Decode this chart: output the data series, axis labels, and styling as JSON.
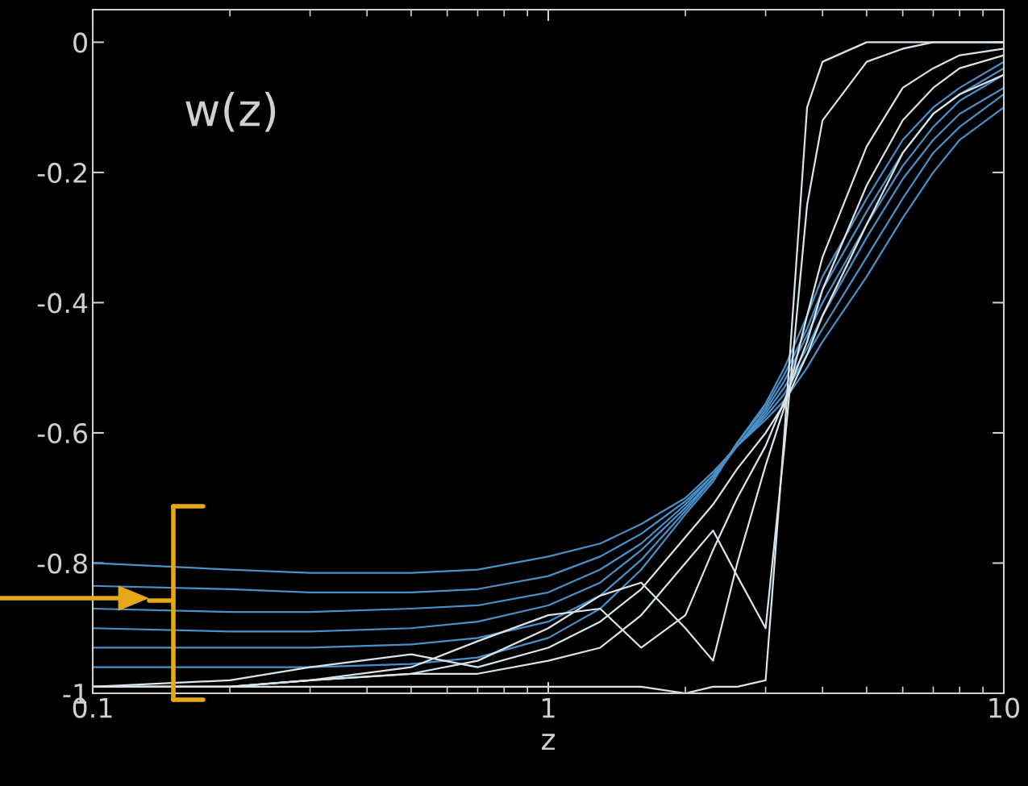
{
  "chart_data": {
    "type": "line",
    "xlabel": "z",
    "annotations": [
      "w(z)"
    ],
    "log": "x",
    "grid": false,
    "xlim": [
      0.1,
      10
    ],
    "xticks": [
      0.1,
      1,
      10
    ],
    "ylim": [
      -1,
      0.05
    ],
    "yticks": [
      -1,
      -0.8,
      -0.6,
      -0.4,
      -0.2,
      0
    ],
    "x": [
      0.1,
      0.2,
      0.3,
      0.5,
      0.7,
      1,
      1.3,
      1.6,
      2,
      2.3,
      2.6,
      3,
      3.3,
      3.7,
      4,
      5,
      6,
      7,
      8,
      10
    ],
    "series": [
      {
        "color": "#4a90c8",
        "values": [
          -0.8,
          -0.81,
          -0.815,
          -0.815,
          -0.81,
          -0.79,
          -0.77,
          -0.74,
          -0.7,
          -0.66,
          -0.62,
          -0.58,
          -0.55,
          -0.5,
          -0.46,
          -0.36,
          -0.27,
          -0.2,
          -0.15,
          -0.1
        ]
      },
      {
        "color": "#4a90c8",
        "values": [
          -0.835,
          -0.84,
          -0.845,
          -0.845,
          -0.84,
          -0.82,
          -0.79,
          -0.755,
          -0.705,
          -0.665,
          -0.62,
          -0.575,
          -0.54,
          -0.48,
          -0.44,
          -0.33,
          -0.24,
          -0.17,
          -0.13,
          -0.08
        ]
      },
      {
        "color": "#4a90c8",
        "values": [
          -0.87,
          -0.875,
          -0.875,
          -0.87,
          -0.865,
          -0.845,
          -0.81,
          -0.77,
          -0.71,
          -0.665,
          -0.62,
          -0.57,
          -0.53,
          -0.47,
          -0.42,
          -0.3,
          -0.21,
          -0.15,
          -0.11,
          -0.07
        ]
      },
      {
        "color": "#4a90c8",
        "values": [
          -0.9,
          -0.905,
          -0.905,
          -0.9,
          -0.89,
          -0.865,
          -0.83,
          -0.78,
          -0.715,
          -0.67,
          -0.62,
          -0.565,
          -0.52,
          -0.45,
          -0.4,
          -0.28,
          -0.19,
          -0.13,
          -0.09,
          -0.05
        ]
      },
      {
        "color": "#4a90c8",
        "values": [
          -0.93,
          -0.93,
          -0.93,
          -0.925,
          -0.915,
          -0.89,
          -0.85,
          -0.795,
          -0.72,
          -0.67,
          -0.615,
          -0.56,
          -0.51,
          -0.44,
          -0.38,
          -0.26,
          -0.17,
          -0.11,
          -0.08,
          -0.04
        ]
      },
      {
        "color": "#4a90c8",
        "values": [
          -0.96,
          -0.96,
          -0.96,
          -0.955,
          -0.945,
          -0.915,
          -0.87,
          -0.81,
          -0.725,
          -0.675,
          -0.615,
          -0.555,
          -0.5,
          -0.42,
          -0.36,
          -0.24,
          -0.15,
          -0.1,
          -0.07,
          -0.03
        ]
      },
      {
        "color": "#d8e4ea",
        "values": [
          -0.99,
          -0.99,
          -0.99,
          -0.99,
          -0.99,
          -0.99,
          -0.99,
          -0.99,
          -1.0,
          -0.99,
          -0.99,
          -0.98,
          -0.6,
          -0.1,
          -0.03,
          0,
          0,
          0,
          0,
          0
        ]
      },
      {
        "color": "#d8e4ea",
        "values": [
          -0.99,
          -0.99,
          -0.98,
          -0.97,
          -0.97,
          -0.95,
          -0.93,
          -0.88,
          -0.8,
          -0.75,
          -0.82,
          -0.9,
          -0.62,
          -0.25,
          -0.12,
          -0.03,
          -0.01,
          0,
          0,
          0
        ]
      },
      {
        "color": "#d8e4ea",
        "values": [
          -0.99,
          -0.99,
          -0.98,
          -0.97,
          -0.95,
          -0.9,
          -0.85,
          -0.83,
          -0.9,
          -0.95,
          -0.8,
          -0.65,
          -0.56,
          -0.42,
          -0.33,
          -0.16,
          -0.07,
          -0.04,
          -0.02,
          -0.01
        ]
      },
      {
        "color": "#d8e4ea",
        "values": [
          -0.99,
          -0.99,
          -0.98,
          -0.96,
          -0.92,
          -0.88,
          -0.87,
          -0.93,
          -0.88,
          -0.78,
          -0.7,
          -0.62,
          -0.55,
          -0.46,
          -0.38,
          -0.22,
          -0.12,
          -0.07,
          -0.04,
          -0.02
        ]
      },
      {
        "color": "#d8e4ea",
        "values": [
          -0.99,
          -0.98,
          -0.96,
          -0.94,
          -0.96,
          -0.93,
          -0.89,
          -0.84,
          -0.76,
          -0.71,
          -0.655,
          -0.6,
          -0.555,
          -0.48,
          -0.42,
          -0.28,
          -0.17,
          -0.11,
          -0.08,
          -0.05
        ]
      }
    ]
  }
}
